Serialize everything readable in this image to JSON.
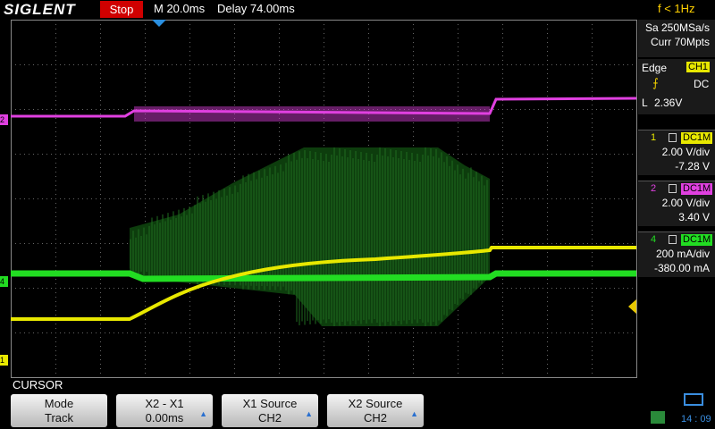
{
  "header": {
    "brand": "SIGLENT",
    "status": "Stop",
    "timebase": "M 20.0ms",
    "delay": "Delay 74.00ms",
    "frequency": "f < 1Hz"
  },
  "acquisition": {
    "sample_rate": "Sa 250MSa/s",
    "memory": "Curr 70Mpts"
  },
  "trigger": {
    "type": "Edge",
    "source": "CH1",
    "coupling": "DC",
    "slope_label": "L",
    "level": "2.36V"
  },
  "channels": [
    {
      "number": "1",
      "coupling": "DC1M",
      "scale": "2.00 V/div",
      "offset": "-7.28 V"
    },
    {
      "number": "2",
      "coupling": "DC1M",
      "scale": "2.00 V/div",
      "offset": "3.40 V"
    },
    {
      "number": "4",
      "coupling": "DC1M",
      "scale": "200 mA/div",
      "offset": "-380.00 mA"
    }
  ],
  "markers": [
    "2",
    "4",
    "1"
  ],
  "menu": {
    "title": "CURSOR",
    "buttons": [
      {
        "label": "Mode",
        "value": "Track"
      },
      {
        "label": "X2 - X1",
        "value": "0.00ms"
      },
      {
        "label": "X1 Source",
        "value": "CH2"
      },
      {
        "label": "X2 Source",
        "value": "CH2"
      }
    ]
  },
  "clock": "14 : 09"
}
